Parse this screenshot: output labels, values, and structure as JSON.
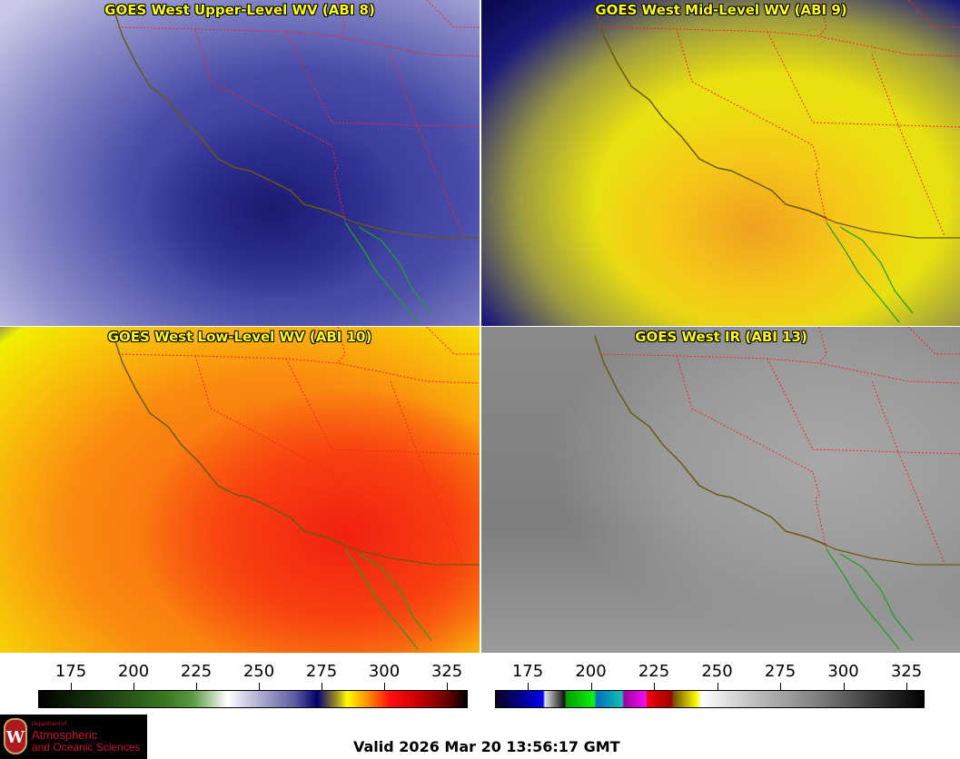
{
  "panels": [
    {
      "title": "GOES West Upper-Level WV (ABI 8)"
    },
    {
      "title": "GOES West Mid-Level WV (ABI 9)"
    },
    {
      "title": "GOES West Low-Level WV (ABI 10)"
    },
    {
      "title": "GOES West IR (ABI 13)"
    }
  ],
  "colorbars": [
    {
      "name": "water-vapor",
      "ticks": [
        "175",
        "200",
        "225",
        "250",
        "275",
        "300",
        "325"
      ]
    },
    {
      "name": "infrared",
      "ticks": [
        "175",
        "200",
        "225",
        "250",
        "275",
        "300",
        "325"
      ]
    }
  ],
  "logo": {
    "line1": "Department of",
    "line2": "Atmospheric",
    "line3": "and Oceanic Sciences",
    "crest": "W"
  },
  "valid_time": "Valid 2026 Mar 20 13:56:17 GMT",
  "colors": {
    "title": "#ffff00",
    "state_borders": "#ff2020",
    "coastline": "#6a5a10",
    "mexico_coast": "#20a020"
  }
}
